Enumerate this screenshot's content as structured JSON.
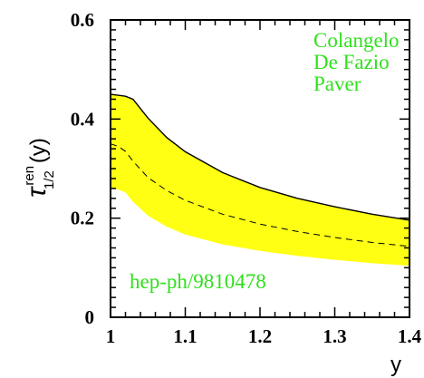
{
  "chart_data": {
    "type": "area",
    "xlabel": "y",
    "ylabel": {
      "symbol": "τ",
      "superscript": "ren",
      "subscript": "1/2",
      "suffix": "(y)"
    },
    "xlim": [
      1.0,
      1.4
    ],
    "ylim": [
      0,
      0.6
    ],
    "x_ticks": [
      1.0,
      1.1,
      1.2,
      1.3,
      1.4
    ],
    "x_tick_labels": [
      "1",
      "1.1",
      "1.2",
      "1.3",
      "1.4"
    ],
    "y_ticks": [
      0,
      0.2,
      0.4,
      0.6
    ],
    "y_tick_labels": [
      "0",
      "0.2",
      "0.4",
      "0.6"
    ],
    "band_color": "#ffff14",
    "series": [
      {
        "style": "solid",
        "x": [
          1.0,
          1.01,
          1.02,
          1.03,
          1.05,
          1.075,
          1.1,
          1.15,
          1.2,
          1.25,
          1.3,
          1.35,
          1.4
        ],
        "values": [
          0.45,
          0.448,
          0.446,
          0.44,
          0.402,
          0.363,
          0.334,
          0.292,
          0.262,
          0.24,
          0.223,
          0.208,
          0.196
        ]
      },
      {
        "style": "dashed",
        "x": [
          1.0,
          1.01,
          1.02,
          1.03,
          1.05,
          1.075,
          1.1,
          1.15,
          1.2,
          1.25,
          1.3,
          1.35,
          1.4
        ],
        "values": [
          0.35,
          0.345,
          0.335,
          0.315,
          0.282,
          0.256,
          0.236,
          0.208,
          0.188,
          0.173,
          0.161,
          0.151,
          0.143
        ]
      },
      {
        "style": "band-lower",
        "x": [
          1.0,
          1.01,
          1.02,
          1.03,
          1.05,
          1.075,
          1.1,
          1.15,
          1.2,
          1.25,
          1.3,
          1.35,
          1.4
        ],
        "values": [
          0.26,
          0.258,
          0.252,
          0.233,
          0.205,
          0.183,
          0.167,
          0.147,
          0.134,
          0.124,
          0.116,
          0.109,
          0.104
        ]
      }
    ],
    "annotations": [
      {
        "text": "Colangelo",
        "color": "#2fe01c"
      },
      {
        "text": "De Fazio",
        "color": "#2fe01c"
      },
      {
        "text": "Paver",
        "color": "#2fe01c"
      },
      {
        "text": "hep-ph/9810478",
        "color": "#2fe01c"
      }
    ]
  }
}
